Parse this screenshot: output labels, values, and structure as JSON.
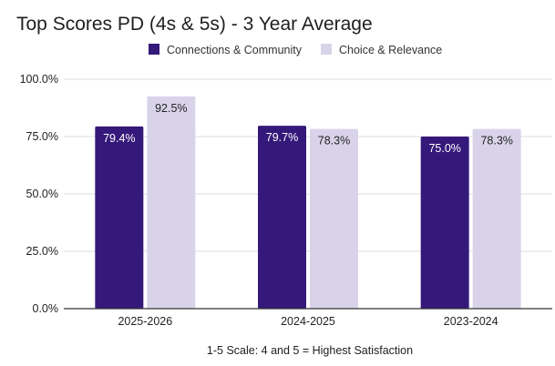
{
  "chart_data": {
    "type": "bar",
    "title": "Top Scores PD (4s & 5s) - 3 Year Average",
    "categories": [
      "2025-2026",
      "2024-2025",
      "2023-2024"
    ],
    "series": [
      {
        "name": "Connections & Community",
        "color": "#35197a",
        "label_color": "#ffffff",
        "values": [
          79.4,
          79.7,
          75.0
        ],
        "labels": [
          "79.4%",
          "79.7%",
          "75.0%"
        ]
      },
      {
        "name": "Choice & Relevance",
        "color": "#d9d3ea",
        "label_color": "#222222",
        "values": [
          92.5,
          78.3,
          78.3
        ],
        "labels": [
          "92.5%",
          "78.3%",
          "78.3%"
        ]
      }
    ],
    "y_ticks": [
      0,
      25,
      50,
      75,
      100
    ],
    "y_tick_labels": [
      "0.0%",
      "25.0%",
      "50.0%",
      "75.0%",
      "100.0%"
    ],
    "ylim": [
      0,
      100
    ],
    "xlabel": "1-5 Scale:  4 and 5 = Highest Satisfaction",
    "ylabel": "",
    "legend_position": "top-center",
    "grid": true
  }
}
